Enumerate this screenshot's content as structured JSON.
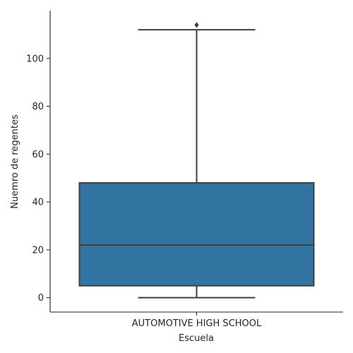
{
  "chart_data": {
    "type": "box",
    "xlabel": "Escuela",
    "ylabel": "Nuemro de regentes",
    "ylim": [
      -6,
      120
    ],
    "y_ticks": [
      0,
      20,
      40,
      60,
      80,
      100
    ],
    "categories": [
      "AUTOMOTIVE HIGH SCHOOL"
    ],
    "boxes": [
      {
        "category": "AUTOMOTIVE HIGH SCHOOL",
        "whisker_low": 0,
        "q1": 5,
        "median": 22,
        "q3": 48,
        "whisker_high": 112,
        "outliers": [
          114
        ]
      }
    ],
    "color": "#3274a1",
    "line_color": "#3f3f3f"
  }
}
